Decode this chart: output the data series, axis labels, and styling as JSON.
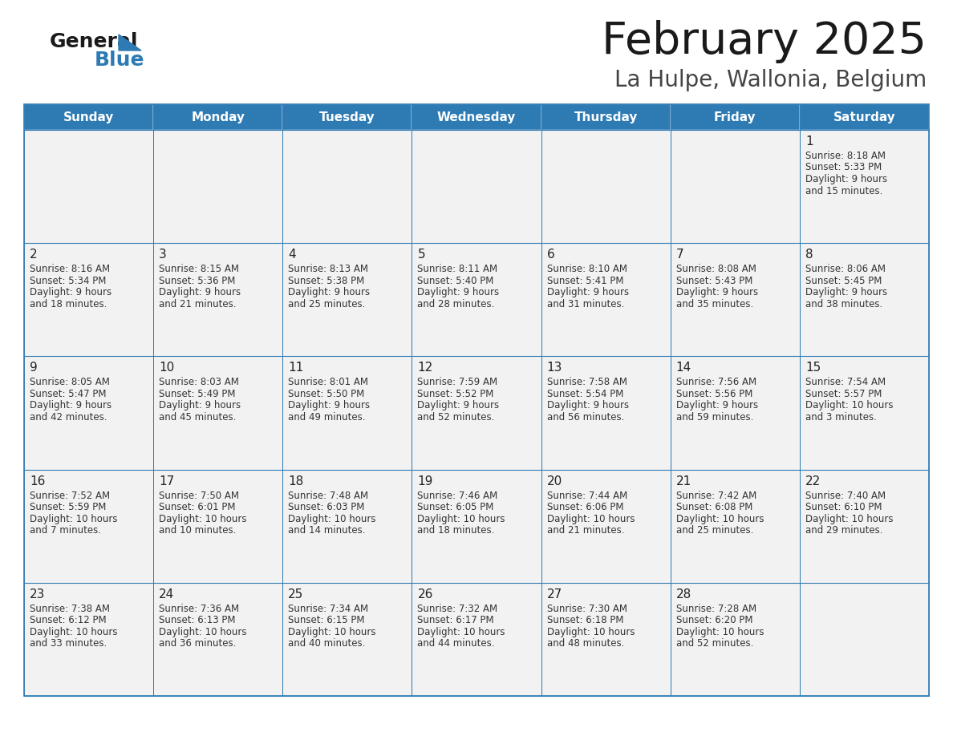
{
  "title": "February 2025",
  "subtitle": "La Hulpe, Wallonia, Belgium",
  "days_of_week": [
    "Sunday",
    "Monday",
    "Tuesday",
    "Wednesday",
    "Thursday",
    "Friday",
    "Saturday"
  ],
  "header_bg_color": "#2E7BB4",
  "header_text_color": "#FFFFFF",
  "cell_bg_color": "#F2F2F2",
  "cell_border_color": "#2E7BB4",
  "day_number_color": "#222222",
  "cell_text_color": "#333333",
  "title_color": "#1a1a1a",
  "subtitle_color": "#444444",
  "logo_general_color": "#1a1a1a",
  "logo_blue_color": "#2E7BB4",
  "weeks": [
    [
      {
        "day": null,
        "info": null
      },
      {
        "day": null,
        "info": null
      },
      {
        "day": null,
        "info": null
      },
      {
        "day": null,
        "info": null
      },
      {
        "day": null,
        "info": null
      },
      {
        "day": null,
        "info": null
      },
      {
        "day": 1,
        "info": "Sunrise: 8:18 AM\nSunset: 5:33 PM\nDaylight: 9 hours\nand 15 minutes."
      }
    ],
    [
      {
        "day": 2,
        "info": "Sunrise: 8:16 AM\nSunset: 5:34 PM\nDaylight: 9 hours\nand 18 minutes."
      },
      {
        "day": 3,
        "info": "Sunrise: 8:15 AM\nSunset: 5:36 PM\nDaylight: 9 hours\nand 21 minutes."
      },
      {
        "day": 4,
        "info": "Sunrise: 8:13 AM\nSunset: 5:38 PM\nDaylight: 9 hours\nand 25 minutes."
      },
      {
        "day": 5,
        "info": "Sunrise: 8:11 AM\nSunset: 5:40 PM\nDaylight: 9 hours\nand 28 minutes."
      },
      {
        "day": 6,
        "info": "Sunrise: 8:10 AM\nSunset: 5:41 PM\nDaylight: 9 hours\nand 31 minutes."
      },
      {
        "day": 7,
        "info": "Sunrise: 8:08 AM\nSunset: 5:43 PM\nDaylight: 9 hours\nand 35 minutes."
      },
      {
        "day": 8,
        "info": "Sunrise: 8:06 AM\nSunset: 5:45 PM\nDaylight: 9 hours\nand 38 minutes."
      }
    ],
    [
      {
        "day": 9,
        "info": "Sunrise: 8:05 AM\nSunset: 5:47 PM\nDaylight: 9 hours\nand 42 minutes."
      },
      {
        "day": 10,
        "info": "Sunrise: 8:03 AM\nSunset: 5:49 PM\nDaylight: 9 hours\nand 45 minutes."
      },
      {
        "day": 11,
        "info": "Sunrise: 8:01 AM\nSunset: 5:50 PM\nDaylight: 9 hours\nand 49 minutes."
      },
      {
        "day": 12,
        "info": "Sunrise: 7:59 AM\nSunset: 5:52 PM\nDaylight: 9 hours\nand 52 minutes."
      },
      {
        "day": 13,
        "info": "Sunrise: 7:58 AM\nSunset: 5:54 PM\nDaylight: 9 hours\nand 56 minutes."
      },
      {
        "day": 14,
        "info": "Sunrise: 7:56 AM\nSunset: 5:56 PM\nDaylight: 9 hours\nand 59 minutes."
      },
      {
        "day": 15,
        "info": "Sunrise: 7:54 AM\nSunset: 5:57 PM\nDaylight: 10 hours\nand 3 minutes."
      }
    ],
    [
      {
        "day": 16,
        "info": "Sunrise: 7:52 AM\nSunset: 5:59 PM\nDaylight: 10 hours\nand 7 minutes."
      },
      {
        "day": 17,
        "info": "Sunrise: 7:50 AM\nSunset: 6:01 PM\nDaylight: 10 hours\nand 10 minutes."
      },
      {
        "day": 18,
        "info": "Sunrise: 7:48 AM\nSunset: 6:03 PM\nDaylight: 10 hours\nand 14 minutes."
      },
      {
        "day": 19,
        "info": "Sunrise: 7:46 AM\nSunset: 6:05 PM\nDaylight: 10 hours\nand 18 minutes."
      },
      {
        "day": 20,
        "info": "Sunrise: 7:44 AM\nSunset: 6:06 PM\nDaylight: 10 hours\nand 21 minutes."
      },
      {
        "day": 21,
        "info": "Sunrise: 7:42 AM\nSunset: 6:08 PM\nDaylight: 10 hours\nand 25 minutes."
      },
      {
        "day": 22,
        "info": "Sunrise: 7:40 AM\nSunset: 6:10 PM\nDaylight: 10 hours\nand 29 minutes."
      }
    ],
    [
      {
        "day": 23,
        "info": "Sunrise: 7:38 AM\nSunset: 6:12 PM\nDaylight: 10 hours\nand 33 minutes."
      },
      {
        "day": 24,
        "info": "Sunrise: 7:36 AM\nSunset: 6:13 PM\nDaylight: 10 hours\nand 36 minutes."
      },
      {
        "day": 25,
        "info": "Sunrise: 7:34 AM\nSunset: 6:15 PM\nDaylight: 10 hours\nand 40 minutes."
      },
      {
        "day": 26,
        "info": "Sunrise: 7:32 AM\nSunset: 6:17 PM\nDaylight: 10 hours\nand 44 minutes."
      },
      {
        "day": 27,
        "info": "Sunrise: 7:30 AM\nSunset: 6:18 PM\nDaylight: 10 hours\nand 48 minutes."
      },
      {
        "day": 28,
        "info": "Sunrise: 7:28 AM\nSunset: 6:20 PM\nDaylight: 10 hours\nand 52 minutes."
      },
      {
        "day": null,
        "info": null
      }
    ]
  ]
}
